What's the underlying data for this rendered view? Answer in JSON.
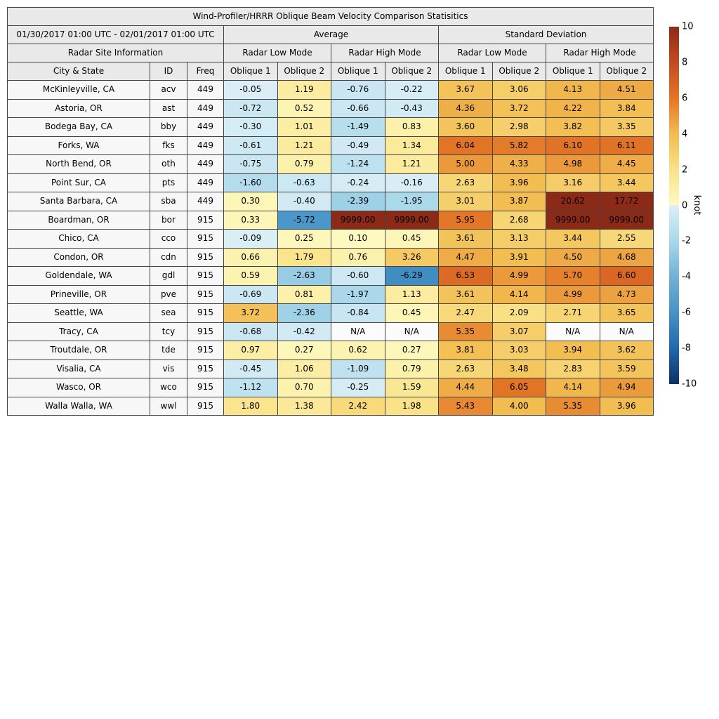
{
  "chart_data": {
    "type": "heatmap",
    "title": "Wind-Profiler/HRRR Oblique Beam Velocity Comparison Statisitics",
    "date_range": "01/30/2017 01:00 UTC - 02/01/2017 01:00 UTC",
    "group_headers": {
      "average": "Average",
      "stddev": "Standard Deviation"
    },
    "site_info_header": "Radar Site Information",
    "mode_headers": {
      "low": "Radar Low Mode",
      "high": "Radar High Mode"
    },
    "columns": {
      "city": "City & State",
      "id": "ID",
      "freq": "Freq",
      "oblique1": "Oblique 1",
      "oblique2": "Oblique 2"
    },
    "value_column_order": [
      "avg_low_oblique1",
      "avg_low_oblique2",
      "avg_high_oblique1",
      "avg_high_oblique2",
      "sd_low_oblique1",
      "sd_low_oblique2",
      "sd_high_oblique1",
      "sd_high_oblique2"
    ],
    "rows": [
      {
        "city": "McKinleyville, CA",
        "id": "acv",
        "freq": "449",
        "values": [
          "-0.05",
          "1.19",
          "-0.76",
          "-0.22",
          "3.67",
          "3.06",
          "4.13",
          "4.51"
        ]
      },
      {
        "city": "Astoria, OR",
        "id": "ast",
        "freq": "449",
        "values": [
          "-0.72",
          "0.52",
          "-0.66",
          "-0.43",
          "4.36",
          "3.72",
          "4.22",
          "3.84"
        ]
      },
      {
        "city": "Bodega Bay, CA",
        "id": "bby",
        "freq": "449",
        "values": [
          "-0.30",
          "1.01",
          "-1.49",
          "0.83",
          "3.60",
          "2.98",
          "3.82",
          "3.35"
        ]
      },
      {
        "city": "Forks, WA",
        "id": "fks",
        "freq": "449",
        "values": [
          "-0.61",
          "1.21",
          "-0.49",
          "1.34",
          "6.04",
          "5.82",
          "6.10",
          "6.11"
        ]
      },
      {
        "city": "North Bend, OR",
        "id": "oth",
        "freq": "449",
        "values": [
          "-0.75",
          "0.79",
          "-1.24",
          "1.21",
          "5.00",
          "4.33",
          "4.98",
          "4.45"
        ]
      },
      {
        "city": "Point Sur, CA",
        "id": "pts",
        "freq": "449",
        "values": [
          "-1.60",
          "-0.63",
          "-0.24",
          "-0.16",
          "2.63",
          "3.96",
          "3.16",
          "3.44"
        ]
      },
      {
        "city": "Santa Barbara, CA",
        "id": "sba",
        "freq": "449",
        "values": [
          "0.30",
          "-0.40",
          "-2.39",
          "-1.95",
          "3.01",
          "3.87",
          "20.62",
          "17.72"
        ]
      },
      {
        "city": "Boardman, OR",
        "id": "bor",
        "freq": "915",
        "values": [
          "0.33",
          "-5.72",
          "9999.00",
          "9999.00",
          "5.95",
          "2.68",
          "9999.00",
          "9999.00"
        ]
      },
      {
        "city": "Chico, CA",
        "id": "cco",
        "freq": "915",
        "values": [
          "-0.09",
          "0.25",
          "0.10",
          "0.45",
          "3.61",
          "3.13",
          "3.44",
          "2.55"
        ]
      },
      {
        "city": "Condon, OR",
        "id": "cdn",
        "freq": "915",
        "values": [
          "0.66",
          "1.79",
          "0.76",
          "3.26",
          "4.47",
          "3.91",
          "4.50",
          "4.68"
        ]
      },
      {
        "city": "Goldendale, WA",
        "id": "gdl",
        "freq": "915",
        "values": [
          "0.59",
          "-2.63",
          "-0.60",
          "-6.29",
          "6.53",
          "4.99",
          "5.70",
          "6.60"
        ]
      },
      {
        "city": "Prineville, OR",
        "id": "pve",
        "freq": "915",
        "values": [
          "-0.69",
          "0.81",
          "-1.97",
          "1.13",
          "3.61",
          "4.14",
          "4.99",
          "4.73"
        ]
      },
      {
        "city": "Seattle, WA",
        "id": "sea",
        "freq": "915",
        "values": [
          "3.72",
          "-2.36",
          "-0.84",
          "0.45",
          "2.47",
          "2.09",
          "2.71",
          "3.65"
        ]
      },
      {
        "city": "Tracy, CA",
        "id": "tcy",
        "freq": "915",
        "values": [
          "-0.68",
          "-0.42",
          "N/A",
          "N/A",
          "5.35",
          "3.07",
          "N/A",
          "N/A"
        ]
      },
      {
        "city": "Troutdale, OR",
        "id": "tde",
        "freq": "915",
        "values": [
          "0.97",
          "0.27",
          "0.62",
          "0.27",
          "3.81",
          "3.03",
          "3.94",
          "3.62"
        ]
      },
      {
        "city": "Visalia, CA",
        "id": "vis",
        "freq": "915",
        "values": [
          "-0.45",
          "1.06",
          "-1.09",
          "0.79",
          "2.63",
          "3.48",
          "2.83",
          "3.59"
        ]
      },
      {
        "city": "Wasco, OR",
        "id": "wco",
        "freq": "915",
        "values": [
          "-1.12",
          "0.70",
          "-0.25",
          "1.59",
          "4.44",
          "6.05",
          "4.14",
          "4.94"
        ]
      },
      {
        "city": "Walla Walla, WA",
        "id": "wwl",
        "freq": "915",
        "values": [
          "1.80",
          "1.38",
          "2.42",
          "1.98",
          "5.43",
          "4.00",
          "5.35",
          "3.96"
        ]
      }
    ],
    "na_text": "N/A",
    "colorbar": {
      "label": "knot",
      "min": -10,
      "max": 10,
      "ticks": [
        "10",
        "8",
        "6",
        "4",
        "2",
        "0",
        "-2",
        "-4",
        "-6",
        "-8",
        "-10"
      ],
      "gradient_anchors": [
        [
          10,
          "#8C2A18"
        ],
        [
          8,
          "#C44A20"
        ],
        [
          6,
          "#E37526"
        ],
        [
          4,
          "#F2BC50"
        ],
        [
          2,
          "#F9E287"
        ],
        [
          0,
          "#FEFAC2"
        ],
        [
          -0.001,
          "#DCEFF7"
        ],
        [
          -2,
          "#A9D8EA"
        ],
        [
          -4,
          "#72B1D7"
        ],
        [
          -6,
          "#4493C7"
        ],
        [
          -8,
          "#2267AC"
        ],
        [
          -10,
          "#0C3266"
        ]
      ]
    }
  },
  "colors": {
    "page_bg": "#FFFFFF",
    "header_bg": "#E9E9E9",
    "info_bg": "#F7F7F7",
    "na_bg": "#FBFBFB",
    "border": "#444444",
    "text": "#000000"
  }
}
